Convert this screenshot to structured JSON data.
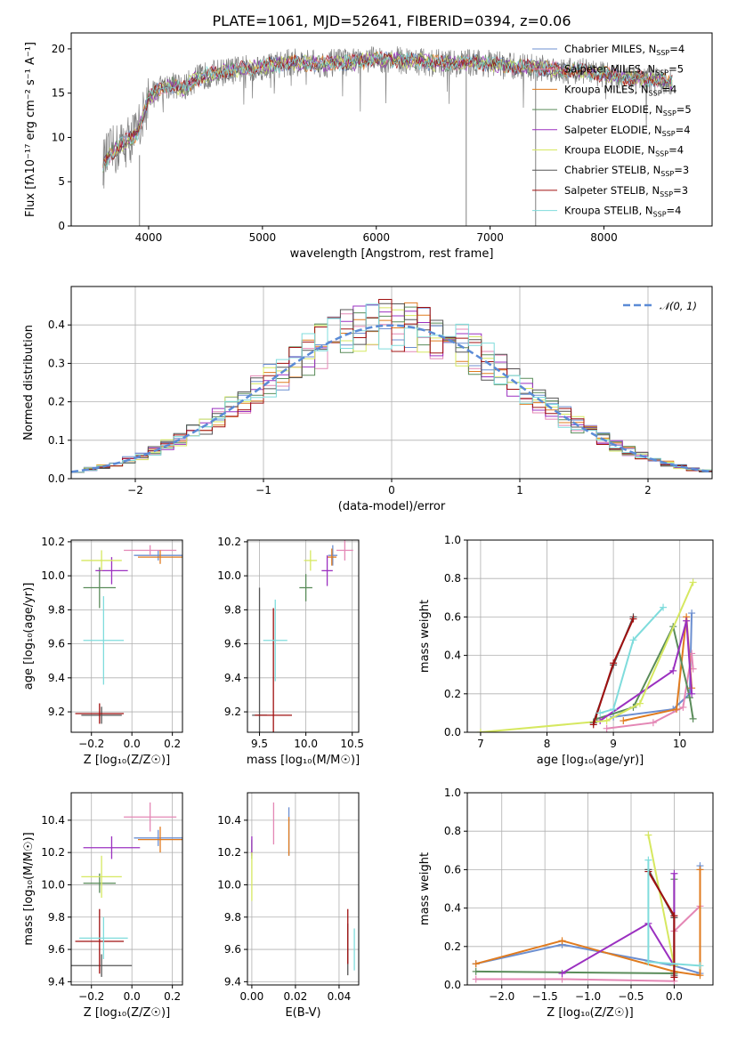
{
  "figure": {
    "title": "PLATE=1061, MJD=52641, FIBERID=0394, z=0.06"
  },
  "models": [
    {
      "name": "Chabrier MILES",
      "n_ssp": 4,
      "color": "#6c8fd0"
    },
    {
      "name": "Salpeter MILES",
      "n_ssp": 5,
      "color": "#e487b5"
    },
    {
      "name": "Kroupa MILES",
      "n_ssp": 4,
      "color": "#e07b1f"
    },
    {
      "name": "Chabrier ELODIE",
      "n_ssp": 5,
      "color": "#5a8c5a"
    },
    {
      "name": "Salpeter ELODIE",
      "n_ssp": 4,
      "color": "#9b30c0"
    },
    {
      "name": "Kroupa ELODIE",
      "n_ssp": 4,
      "color": "#d6e860"
    },
    {
      "name": "Chabrier STELIB",
      "n_ssp": 3,
      "color": "#555555"
    },
    {
      "name": "Salpeter STELIB",
      "n_ssp": 3,
      "color": "#a01010"
    },
    {
      "name": "Kroupa STELIB",
      "n_ssp": 4,
      "color": "#7fdcdc"
    }
  ],
  "chart_data": [
    {
      "id": "spectrum",
      "type": "line",
      "xlabel": "wavelength [Angstrom, rest frame]",
      "ylabel": "Flux [fλ10⁻¹⁷ erg cm⁻² s⁻¹ A⁻¹]",
      "xlim": [
        3320,
        8950
      ],
      "ylim": [
        0,
        21.8
      ],
      "xticks": [
        4000,
        5000,
        6000,
        7000,
        8000
      ],
      "yticks": [
        0,
        5,
        10,
        15,
        20
      ],
      "legend_position": "top-right",
      "data_color": "#808080",
      "continuum": {
        "x": [
          3600,
          3650,
          3700,
          3800,
          3900,
          3950,
          4000,
          4100,
          4200,
          4300,
          4400,
          4500,
          4700,
          4900,
          5100,
          5300,
          5500,
          5800,
          6000,
          6300,
          6600,
          6900,
          7200,
          7500,
          7800,
          8100,
          8400,
          8600
        ],
        "y": [
          7.0,
          8.0,
          8.5,
          9.5,
          10.5,
          12.5,
          14.5,
          15.5,
          16.0,
          15.5,
          16.5,
          17.0,
          17.5,
          17.8,
          18.2,
          18.5,
          18.3,
          18.5,
          18.8,
          18.7,
          18.3,
          18.5,
          18.0,
          17.8,
          17.5,
          16.9,
          16.5,
          16.2
        ]
      },
      "outliers": [
        {
          "x": 3920,
          "y_min": 0,
          "y_max": 8
        },
        {
          "x": 6790,
          "y_min": 0,
          "y_max": 18
        },
        {
          "x": 7400,
          "y_min": 0,
          "y_max": 18
        }
      ]
    },
    {
      "id": "residuals",
      "type": "histogram",
      "xlabel": "(data-model)/error",
      "ylabel": "Normed distribution",
      "xlim": [
        -2.5,
        2.5
      ],
      "ylim": [
        0,
        0.5
      ],
      "xticks": [
        -2,
        -1,
        0,
        1,
        2
      ],
      "yticks": [
        0.0,
        0.1,
        0.2,
        0.3,
        0.4
      ],
      "grid": true,
      "legend_label": "𝒩(0, 1)",
      "legend_position": "top-right",
      "gaussian": {
        "mean": 0,
        "sigma": 1,
        "color": "#5b8bd6"
      },
      "bin_width": 0.1
    },
    {
      "id": "age-vs-z",
      "type": "errorbar",
      "xlabel": "Z [log₁₀(Z/Z☉)]",
      "ylabel": "age  [log₁₀(age/yr)]",
      "xlim": [
        -0.3,
        0.25
      ],
      "ylim": [
        9.08,
        10.21
      ],
      "xticks": [
        -0.2,
        0.0,
        0.2
      ],
      "yticks": [
        9.2,
        9.4,
        9.6,
        9.8,
        10.0,
        10.2
      ],
      "grid": true,
      "points": [
        {
          "model": 0,
          "x": 0.13,
          "y": 10.12,
          "xerr": 0.12,
          "yerr": 0.03
        },
        {
          "model": 1,
          "x": 0.09,
          "y": 10.15,
          "xerr": 0.13,
          "yerr": 0.03
        },
        {
          "model": 2,
          "x": 0.14,
          "y": 10.11,
          "xerr": 0.11,
          "yerr": 0.04
        },
        {
          "model": 3,
          "x": -0.16,
          "y": 9.93,
          "xerr": 0.08,
          "yerr": 0.12
        },
        {
          "model": 4,
          "x": -0.1,
          "y": 10.03,
          "xerr": 0.08,
          "yerr": 0.08
        },
        {
          "model": 5,
          "x": -0.15,
          "y": 10.09,
          "xerr": 0.1,
          "yerr": 0.06
        },
        {
          "model": 6,
          "x": -0.15,
          "y": 9.18,
          "xerr": 0.1,
          "yerr": 0.05
        },
        {
          "model": 7,
          "x": -0.16,
          "y": 9.19,
          "xerr": 0.12,
          "yerr": 0.06
        },
        {
          "model": 8,
          "x": -0.14,
          "y": 9.62,
          "xerr": 0.1,
          "yerr": 0.26
        }
      ]
    },
    {
      "id": "age-vs-mass",
      "type": "errorbar",
      "xlabel": "mass [log₁₀(M/M☉)]",
      "ylabel": "",
      "xlim": [
        9.37,
        10.57
      ],
      "ylim": [
        9.08,
        10.21
      ],
      "xticks": [
        9.5,
        10.0,
        10.5
      ],
      "yticks": [
        9.2,
        9.4,
        9.6,
        9.8,
        10.0,
        10.2
      ],
      "grid": true,
      "points": [
        {
          "model": 0,
          "x": 10.29,
          "y": 10.12,
          "xerr": 0.05,
          "yerr": 0.06
        },
        {
          "model": 1,
          "x": 10.42,
          "y": 10.15,
          "xerr": 0.09,
          "yerr": 0.06
        },
        {
          "model": 2,
          "x": 10.28,
          "y": 10.11,
          "xerr": 0.05,
          "yerr": 0.05
        },
        {
          "model": 3,
          "x": 10.0,
          "y": 9.93,
          "xerr": 0.07,
          "yerr": 0.08
        },
        {
          "model": 4,
          "x": 10.23,
          "y": 10.03,
          "xerr": 0.06,
          "yerr": 0.09
        },
        {
          "model": 5,
          "x": 10.05,
          "y": 10.09,
          "xerr": 0.07,
          "yerr": 0.06
        },
        {
          "model": 6,
          "x": 9.5,
          "y": 9.18,
          "xerr": 0.08,
          "yerr": 0.75
        },
        {
          "model": 7,
          "x": 9.65,
          "y": 9.18,
          "xerr": 0.2,
          "yerr": 0.63
        },
        {
          "model": 8,
          "x": 9.67,
          "y": 9.62,
          "xerr": 0.13,
          "yerr": 0.24
        }
      ]
    },
    {
      "id": "weight-vs-age",
      "type": "line",
      "xlabel": "age  [log₁₀(age/yr)]",
      "ylabel": "mass weight",
      "xlim": [
        6.8,
        10.5
      ],
      "ylim": [
        0.0,
        1.0
      ],
      "xticks": [
        7,
        8,
        9,
        10
      ],
      "yticks": [
        0.0,
        0.2,
        0.4,
        0.6,
        0.8,
        1.0
      ],
      "grid": true,
      "series": [
        {
          "model": 0,
          "x": [
            9.0,
            9.9,
            10.15,
            10.18
          ],
          "y": [
            0.08,
            0.12,
            0.2,
            0.62
          ]
        },
        {
          "model": 1,
          "x": [
            8.9,
            9.6,
            10.05,
            10.18,
            10.2
          ],
          "y": [
            0.02,
            0.05,
            0.13,
            0.41,
            0.33
          ]
        },
        {
          "model": 2,
          "x": [
            9.15,
            9.95,
            10.1,
            10.18
          ],
          "y": [
            0.06,
            0.12,
            0.6,
            0.23
          ]
        },
        {
          "model": 3,
          "x": [
            8.75,
            9.3,
            9.9,
            10.15,
            10.2
          ],
          "y": [
            0.07,
            0.13,
            0.55,
            0.18,
            0.07
          ]
        },
        {
          "model": 4,
          "x": [
            8.8,
            9.9,
            10.1,
            10.18
          ],
          "y": [
            0.06,
            0.32,
            0.58,
            0.2
          ]
        },
        {
          "model": 5,
          "x": [
            7.0,
            8.9,
            9.4,
            10.2
          ],
          "y": [
            0.0,
            0.06,
            0.15,
            0.78
          ]
        },
        {
          "model": 6,
          "x": [
            8.7,
            9.0,
            9.3
          ],
          "y": [
            0.05,
            0.35,
            0.6
          ]
        },
        {
          "model": 7,
          "x": [
            8.7,
            9.0,
            9.3
          ],
          "y": [
            0.04,
            0.36,
            0.59
          ]
        },
        {
          "model": 8,
          "x": [
            8.8,
            9.0,
            9.3,
            9.75
          ],
          "y": [
            0.1,
            0.12,
            0.48,
            0.65
          ]
        }
      ]
    },
    {
      "id": "mass-vs-z",
      "type": "errorbar",
      "xlabel": "Z [log₁₀(Z/Z☉)]",
      "ylabel": "mass [log₁₀(M/M☉)]",
      "xlim": [
        -0.3,
        0.25
      ],
      "ylim": [
        9.38,
        10.57
      ],
      "xticks": [
        -0.2,
        0.0,
        0.2
      ],
      "yticks": [
        9.4,
        9.6,
        9.8,
        10.0,
        10.2,
        10.4
      ],
      "grid": true,
      "points": [
        {
          "model": 0,
          "x": 0.13,
          "y": 10.29,
          "xerr": 0.12,
          "yerr": 0.05
        },
        {
          "model": 1,
          "x": 0.09,
          "y": 10.42,
          "xerr": 0.13,
          "yerr": 0.09
        },
        {
          "model": 2,
          "x": 0.14,
          "y": 10.28,
          "xerr": 0.11,
          "yerr": 0.08
        },
        {
          "model": 3,
          "x": -0.16,
          "y": 10.01,
          "xerr": 0.08,
          "yerr": 0.06
        },
        {
          "model": 4,
          "x": -0.1,
          "y": 10.23,
          "xerr": 0.14,
          "yerr": 0.07
        },
        {
          "model": 5,
          "x": -0.15,
          "y": 10.05,
          "xerr": 0.1,
          "yerr": 0.13
        },
        {
          "model": 6,
          "x": -0.15,
          "y": 9.5,
          "xerr": 0.15,
          "yerr": 0.07
        },
        {
          "model": 7,
          "x": -0.16,
          "y": 9.65,
          "xerr": 0.12,
          "yerr": 0.2
        },
        {
          "model": 8,
          "x": -0.14,
          "y": 9.67,
          "xerr": 0.12,
          "yerr": 0.13
        }
      ]
    },
    {
      "id": "mass-vs-ebv",
      "type": "errorbar",
      "xlabel": "E(B-V)",
      "ylabel": "",
      "xlim": [
        -0.002,
        0.049
      ],
      "ylim": [
        9.38,
        10.57
      ],
      "xticks": [
        0.0,
        0.02,
        0.04
      ],
      "yticks": [
        9.4,
        9.6,
        9.8,
        10.0,
        10.2,
        10.4
      ],
      "grid": true,
      "points": [
        {
          "model": 0,
          "x": 0.017,
          "y": 10.33,
          "xerr": 0,
          "yerr": 0.15
        },
        {
          "model": 1,
          "x": 0.01,
          "y": 10.38,
          "xerr": 0,
          "yerr": 0.13
        },
        {
          "model": 2,
          "x": 0.017,
          "y": 10.3,
          "xerr": 0,
          "yerr": 0.12
        },
        {
          "model": 3,
          "x": 0.0,
          "y": 10.22,
          "xerr": 0,
          "yerr": 0.06
        },
        {
          "model": 4,
          "x": 0.0,
          "y": 10.24,
          "xerr": 0,
          "yerr": 0.06
        },
        {
          "model": 5,
          "x": 0.0,
          "y": 10.05,
          "xerr": 0,
          "yerr": 0.15
        },
        {
          "model": 6,
          "x": 0.044,
          "y": 9.6,
          "xerr": 0,
          "yerr": 0.16
        },
        {
          "model": 7,
          "x": 0.044,
          "y": 9.68,
          "xerr": 0,
          "yerr": 0.17
        },
        {
          "model": 8,
          "x": 0.047,
          "y": 9.6,
          "xerr": 0,
          "yerr": 0.13
        }
      ]
    },
    {
      "id": "weight-vs-z",
      "type": "line",
      "xlabel": "Z [log₁₀(Z/Z☉)]",
      "ylabel": "mass weight",
      "xlim": [
        -2.4,
        0.45
      ],
      "ylim": [
        0.0,
        1.0
      ],
      "xticks": [
        -2.0,
        -1.5,
        -1.0,
        -0.5,
        0.0
      ],
      "yticks": [
        0.0,
        0.2,
        0.4,
        0.6,
        0.8,
        1.0
      ],
      "grid": true,
      "series": [
        {
          "model": 0,
          "x": [
            -2.3,
            -1.3,
            0.0,
            0.3,
            0.3
          ],
          "y": [
            0.11,
            0.21,
            0.1,
            0.06,
            0.62
          ]
        },
        {
          "model": 1,
          "x": [
            -2.3,
            -1.3,
            0.0,
            0.0,
            0.3
          ],
          "y": [
            0.03,
            0.03,
            0.02,
            0.28,
            0.41
          ]
        },
        {
          "model": 2,
          "x": [
            -2.3,
            -1.3,
            0.0,
            0.3,
            0.3
          ],
          "y": [
            0.11,
            0.23,
            0.07,
            0.05,
            0.6
          ]
        },
        {
          "model": 3,
          "x": [
            -2.3,
            0.0,
            0.0
          ],
          "y": [
            0.07,
            0.06,
            0.55
          ]
        },
        {
          "model": 4,
          "x": [
            -1.3,
            -0.3,
            0.0,
            0.0
          ],
          "y": [
            0.06,
            0.32,
            0.1,
            0.58
          ]
        },
        {
          "model": 5,
          "x": [
            -0.3,
            0.0
          ],
          "y": [
            0.78,
            0.1
          ]
        },
        {
          "model": 6,
          "x": [
            -0.3,
            0.0,
            0.0
          ],
          "y": [
            0.6,
            0.35,
            0.05
          ]
        },
        {
          "model": 7,
          "x": [
            -0.3,
            0.0,
            0.0
          ],
          "y": [
            0.59,
            0.36,
            0.04
          ]
        },
        {
          "model": 8,
          "x": [
            -0.3,
            -0.3,
            0.3
          ],
          "y": [
            0.65,
            0.12,
            0.1
          ]
        }
      ]
    }
  ]
}
